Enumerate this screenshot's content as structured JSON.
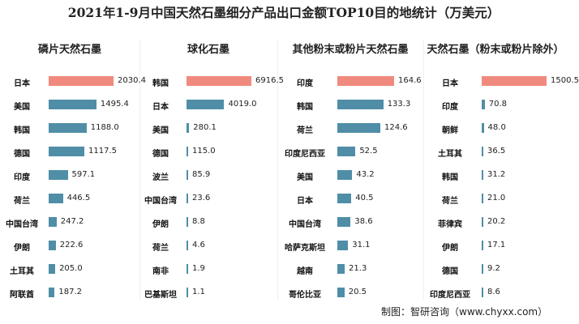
{
  "title": "2021年1-9月中国天然石墨细分产品出口金额TOP10目的地统计（万美元）",
  "footer": "制图：智研咨询（www.chyxx.com）",
  "colors": {
    "highlight": "#f08a7e",
    "bar": "#4f8ea6"
  },
  "chart_data": [
    {
      "type": "bar",
      "title": "磷片天然石墨",
      "categories": [
        "日本",
        "美国",
        "韩国",
        "德国",
        "印度",
        "荷兰",
        "中国台湾",
        "伊朗",
        "土耳其",
        "阿联酋"
      ],
      "values": [
        2030.4,
        1495.4,
        1188.0,
        1117.5,
        597.1,
        446.5,
        247.2,
        222.6,
        205.0,
        187.2
      ]
    },
    {
      "type": "bar",
      "title": "球化石墨",
      "categories": [
        "韩国",
        "日本",
        "美国",
        "德国",
        "波兰",
        "中国台湾",
        "伊朗",
        "荷兰",
        "南非",
        "巴基斯坦"
      ],
      "values": [
        6916.5,
        4019.0,
        280.1,
        115.0,
        85.9,
        23.6,
        8.8,
        4.6,
        1.9,
        1.1
      ]
    },
    {
      "type": "bar",
      "title": "其他粉末或粉片天然石墨",
      "categories": [
        "印度",
        "韩国",
        "荷兰",
        "印度尼西亚",
        "美国",
        "日本",
        "中国台湾",
        "哈萨克斯坦",
        "越南",
        "哥伦比亚"
      ],
      "values": [
        164.6,
        133.3,
        124.6,
        52.5,
        43.2,
        40.5,
        38.6,
        31.1,
        21.3,
        20.5
      ]
    },
    {
      "type": "bar",
      "title": "天然石墨（粉末或粉片除外）",
      "categories": [
        "日本",
        "印度",
        "朝鲜",
        "土耳其",
        "韩国",
        "荷兰",
        "菲律宾",
        "伊朗",
        "德国",
        "印度尼西亚"
      ],
      "values": [
        1500.5,
        70.8,
        48.0,
        36.5,
        31.2,
        21.0,
        20.2,
        17.1,
        9.2,
        8.6
      ]
    }
  ]
}
